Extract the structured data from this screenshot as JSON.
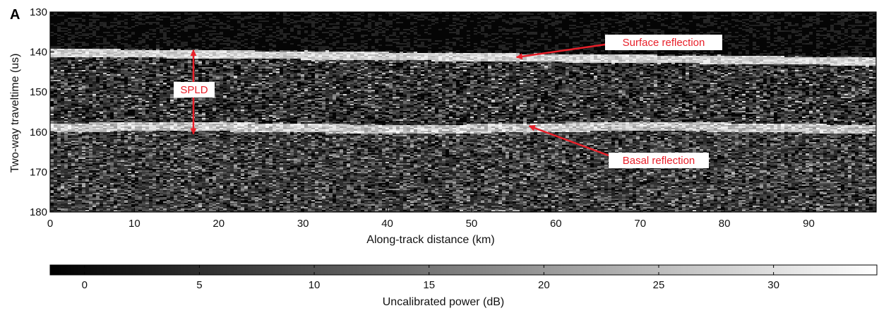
{
  "chart_data": {
    "type": "heatmap",
    "panel_label": "A",
    "xlabel": "Along-track distance (km)",
    "ylabel": "Two-way traveltime (us)",
    "xlim": [
      0,
      98
    ],
    "ylim": [
      130,
      180
    ],
    "y_inverted": true,
    "x_ticks": [
      0,
      10,
      20,
      30,
      40,
      50,
      60,
      70,
      80,
      90
    ],
    "y_ticks": [
      130,
      140,
      150,
      160,
      170,
      180
    ],
    "grid": false,
    "colormap": "grayscale",
    "annotations": [
      {
        "text": "Surface reflection",
        "x": 55,
        "y": 141.3,
        "color": "#e8202a"
      },
      {
        "text": "Basal reflection",
        "x": 56.5,
        "y": 158.5,
        "color": "#e8202a"
      },
      {
        "text": "SPLD",
        "x": 17,
        "y_range": [
          139.5,
          160.5
        ],
        "color": "#e8202a"
      }
    ],
    "colorbar": {
      "label": "Uncalibrated power (dB)",
      "range": [
        -1.5,
        34.5
      ],
      "ticks": [
        0,
        5,
        10,
        15,
        20,
        25,
        30
      ],
      "orientation": "horizontal"
    }
  }
}
